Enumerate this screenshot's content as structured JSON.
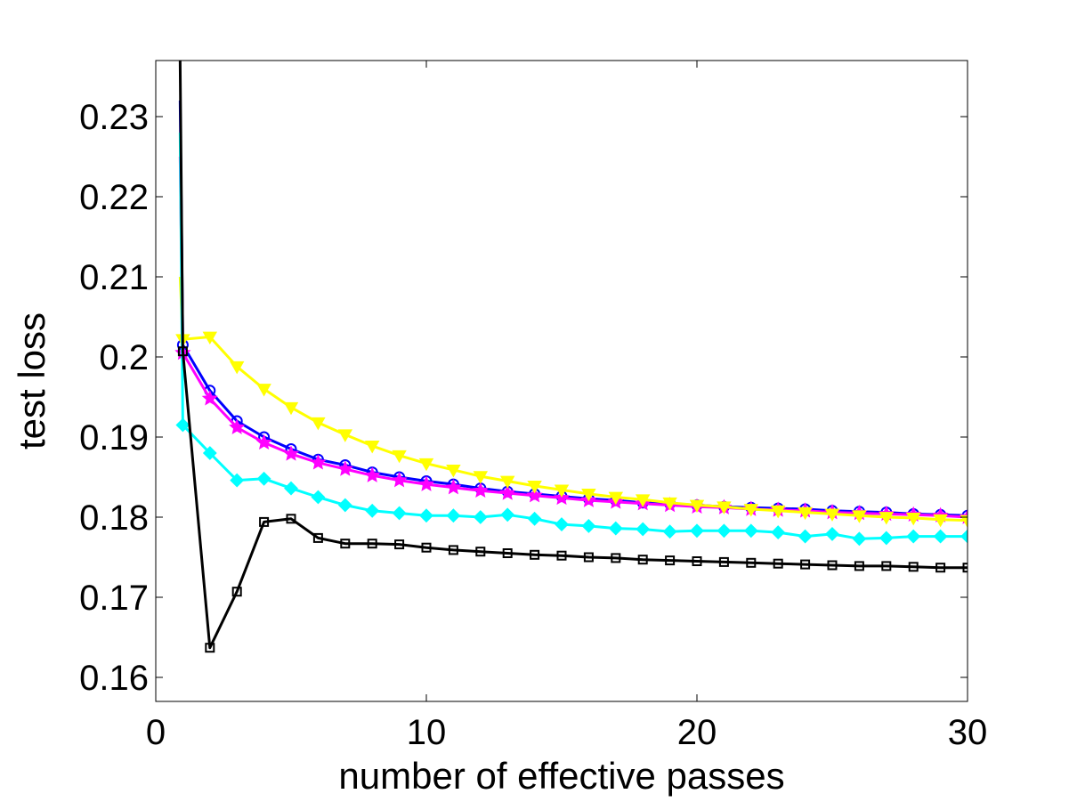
{
  "chart_data": {
    "type": "line",
    "title": "",
    "xlabel": "number of effective passes",
    "ylabel": "test loss",
    "xlim": [
      0,
      30
    ],
    "ylim": [
      0.157,
      0.237
    ],
    "xticks": [
      0,
      10,
      20,
      30
    ],
    "xtick_labels": [
      "0",
      "10",
      "20",
      "30"
    ],
    "yticks": [
      0.16,
      0.17,
      0.18,
      0.19,
      0.2,
      0.21,
      0.22,
      0.23
    ],
    "ytick_labels": [
      "0.16",
      "0.17",
      "0.18",
      "0.19",
      "0.2",
      "0.21",
      "0.22",
      "0.23"
    ],
    "grid": false,
    "series": [
      {
        "name": "blue-circle",
        "color": "#0000ff",
        "marker": "circle",
        "x": [
          0.9,
          1,
          2,
          3,
          4,
          5,
          6,
          7,
          8,
          9,
          10,
          11,
          12,
          13,
          14,
          15,
          16,
          17,
          18,
          19,
          20,
          21,
          22,
          23,
          24,
          25,
          26,
          27,
          28,
          29,
          30
        ],
        "values": [
          0.232,
          0.2015,
          0.1958,
          0.192,
          0.19,
          0.1885,
          0.1872,
          0.1865,
          0.1856,
          0.185,
          0.1845,
          0.1841,
          0.1836,
          0.1832,
          0.1829,
          0.1826,
          0.1823,
          0.1821,
          0.1818,
          0.1817,
          0.1815,
          0.1813,
          0.1812,
          0.1811,
          0.181,
          0.1808,
          0.1807,
          0.1806,
          0.1804,
          0.1803,
          0.1802
        ]
      },
      {
        "name": "magenta-star",
        "color": "#ff00ff",
        "marker": "star",
        "x": [
          0.9,
          1,
          2,
          3,
          4,
          5,
          6,
          7,
          8,
          9,
          10,
          11,
          12,
          13,
          14,
          15,
          16,
          17,
          18,
          19,
          20,
          21,
          22,
          23,
          24,
          25,
          26,
          27,
          28,
          29,
          30
        ],
        "values": [
          0.225,
          0.2005,
          0.1948,
          0.1912,
          0.1893,
          0.1879,
          0.1868,
          0.186,
          0.1852,
          0.1846,
          0.1841,
          0.1837,
          0.1833,
          0.183,
          0.1827,
          0.1824,
          0.1821,
          0.1819,
          0.1817,
          0.1815,
          0.1813,
          0.1812,
          0.181,
          0.1809,
          0.1808,
          0.1806,
          0.1805,
          0.1804,
          0.1803,
          0.1802,
          0.18
        ]
      },
      {
        "name": "yellow-triangle",
        "color": "#ffff00",
        "marker": "triangle-down",
        "x": [
          0.9,
          1,
          2,
          3,
          4,
          5,
          6,
          7,
          8,
          9,
          10,
          11,
          12,
          13,
          14,
          15,
          16,
          17,
          18,
          19,
          20,
          21,
          22,
          23,
          24,
          25,
          26,
          27,
          28,
          29,
          30
        ],
        "values": [
          0.21,
          0.2022,
          0.2025,
          0.1988,
          0.196,
          0.1937,
          0.1918,
          0.1903,
          0.1889,
          0.1877,
          0.1867,
          0.1859,
          0.1851,
          0.1845,
          0.1839,
          0.1834,
          0.1829,
          0.1825,
          0.1822,
          0.1818,
          0.1815,
          0.1813,
          0.181,
          0.1808,
          0.1806,
          0.1804,
          0.1802,
          0.18,
          0.1799,
          0.1797,
          0.1796
        ]
      },
      {
        "name": "cyan-diamond",
        "color": "#00ffff",
        "marker": "diamond",
        "x": [
          0.9,
          1,
          2,
          3,
          4,
          5,
          6,
          7,
          8,
          9,
          10,
          11,
          12,
          13,
          14,
          15,
          16,
          17,
          18,
          19,
          20,
          21,
          22,
          23,
          24,
          25,
          26,
          27,
          28,
          29,
          30
        ],
        "values": [
          0.228,
          0.1915,
          0.188,
          0.1846,
          0.1848,
          0.1836,
          0.1825,
          0.1815,
          0.1808,
          0.1805,
          0.1802,
          0.1802,
          0.18,
          0.1803,
          0.1798,
          0.1791,
          0.1789,
          0.1786,
          0.1785,
          0.1782,
          0.1783,
          0.1783,
          0.1783,
          0.1781,
          0.1776,
          0.1779,
          0.1773,
          0.1774,
          0.1776,
          0.1776,
          0.1776
        ]
      },
      {
        "name": "black-square",
        "color": "#000000",
        "marker": "square",
        "x": [
          0.9,
          1,
          2,
          3,
          4,
          5,
          6,
          7,
          8,
          9,
          10,
          11,
          12,
          13,
          14,
          15,
          16,
          17,
          18,
          19,
          20,
          21,
          22,
          23,
          24,
          25,
          26,
          27,
          28,
          29,
          30
        ],
        "values": [
          0.237,
          0.2007,
          0.1637,
          0.1707,
          0.1794,
          0.1798,
          0.1774,
          0.1767,
          0.1767,
          0.1766,
          0.1762,
          0.1759,
          0.1757,
          0.1755,
          0.1753,
          0.1752,
          0.175,
          0.1749,
          0.1747,
          0.1746,
          0.1745,
          0.1744,
          0.1743,
          0.1742,
          0.1741,
          0.174,
          0.1739,
          0.1739,
          0.1738,
          0.1737,
          0.1737
        ]
      }
    ]
  }
}
